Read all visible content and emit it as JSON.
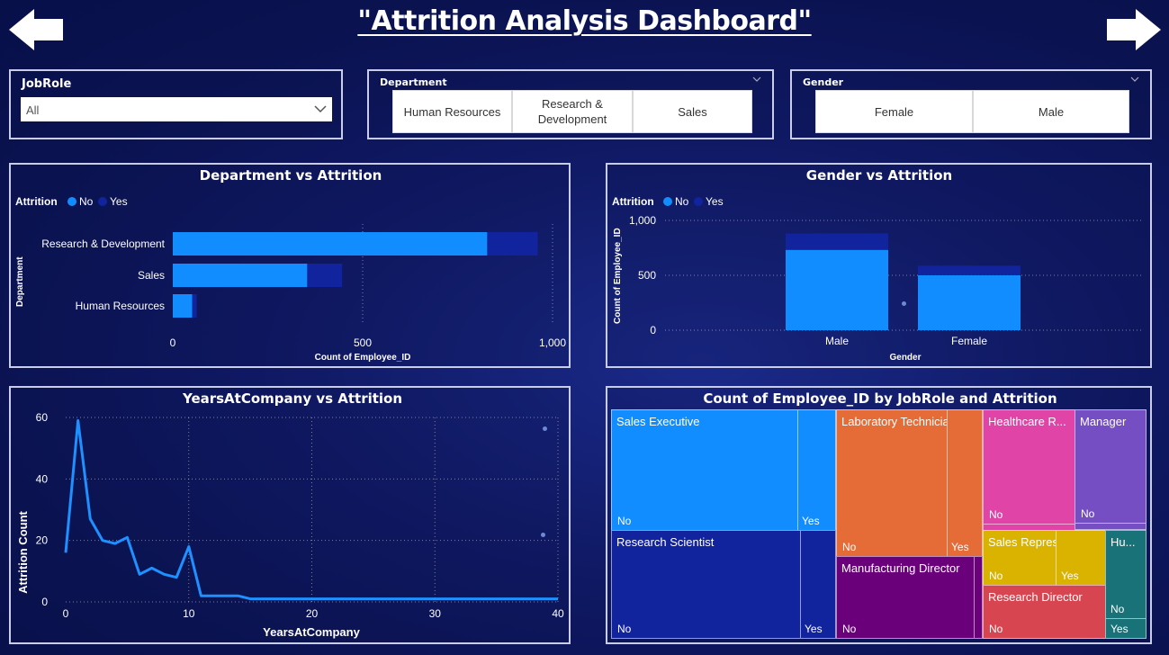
{
  "header": {
    "title": "\"Attrition Analysis Dashboard\"",
    "back_icon": "left-arrow-icon",
    "forward_icon": "right-arrow-icon"
  },
  "slicers": {
    "jobrole": {
      "title": "JobRole",
      "value": "All"
    },
    "department": {
      "title": "Department",
      "options": [
        "Human Resources",
        "Research & Development",
        "Sales"
      ]
    },
    "gender": {
      "title": "Gender",
      "options": [
        "Female",
        "Male"
      ]
    }
  },
  "colors": {
    "no": "#118dff",
    "yes": "#12239e",
    "line": "#1e90ff"
  },
  "dept_chart": {
    "title": "Department vs Attrition",
    "legend_title": "Attrition",
    "legend_no": "No",
    "legend_yes": "Yes",
    "ylabel": "Department",
    "xlabel": "Count of Employee_ID",
    "ticks": [
      "0",
      "500",
      "1,000"
    ]
  },
  "gender_chart": {
    "title": "Gender vs Attrition",
    "legend_title": "Attrition",
    "legend_no": "No",
    "legend_yes": "Yes",
    "ylabel": "Count of Employee_ID",
    "xlabel": "Gender",
    "ticks": [
      "0",
      "500",
      "1,000"
    ]
  },
  "years_chart": {
    "title": "YearsAtCompany vs Attrition",
    "ylabel": "Attrition Count",
    "xlabel": "YearsAtCompany",
    "yticks": [
      "0",
      "20",
      "40",
      "60"
    ],
    "xticks": [
      "0",
      "10",
      "20",
      "30",
      "40"
    ]
  },
  "treemap": {
    "title": "Count of Employee_ID by JobRole and Attrition",
    "sales_executive": "Sales Executive",
    "research_scientist": "Research Scientist",
    "laboratory_technician": "Laboratory Technician",
    "manufacturing_director": "Manufacturing Director",
    "healthcare_rep": "Healthcare R...",
    "manager": "Manager",
    "sales_representative": "Sales Representative",
    "research_director": "Research Director",
    "human_resources": "Hu...",
    "no": "No",
    "yes": "Yes"
  },
  "chart_data": [
    {
      "type": "bar",
      "orientation": "horizontal",
      "stacked": true,
      "title": "Department vs Attrition",
      "xlabel": "Count of Employee_ID",
      "ylabel": "Department",
      "categories": [
        "Research & Development",
        "Sales",
        "Human Resources"
      ],
      "series": [
        {
          "name": "No",
          "values": [
            828,
            354,
            51
          ]
        },
        {
          "name": "Yes",
          "values": [
            133,
            92,
            12
          ]
        }
      ],
      "xlim": [
        0,
        1000
      ],
      "legend": "top-left",
      "grid": true
    },
    {
      "type": "bar",
      "stacked": true,
      "title": "Gender vs Attrition",
      "xlabel": "Gender",
      "ylabel": "Count of Employee_ID",
      "categories": [
        "Male",
        "Female"
      ],
      "series": [
        {
          "name": "No",
          "values": [
            732,
            501
          ]
        },
        {
          "name": "Yes",
          "values": [
            150,
            87
          ]
        }
      ],
      "ylim": [
        0,
        1000
      ],
      "legend": "top-left",
      "grid": true
    },
    {
      "type": "line",
      "title": "YearsAtCompany vs Attrition",
      "xlabel": "YearsAtCompany",
      "ylabel": "Attrition Count",
      "x": [
        0,
        1,
        2,
        3,
        4,
        5,
        6,
        7,
        8,
        9,
        10,
        11,
        12,
        13,
        14,
        15,
        16,
        17,
        18,
        19,
        20,
        21,
        22,
        23,
        24,
        25,
        26,
        27,
        28,
        29,
        30,
        31,
        32,
        33,
        34,
        35,
        36,
        37,
        38,
        39,
        40
      ],
      "y": [
        16,
        59,
        27,
        20,
        19,
        21,
        9,
        11,
        9,
        8,
        18,
        2,
        2,
        2,
        2,
        1,
        1,
        1,
        1,
        1,
        1,
        1,
        1,
        1,
        1,
        1,
        1,
        1,
        1,
        1,
        1,
        1,
        1,
        1,
        1,
        1,
        1,
        1,
        1,
        1,
        1
      ],
      "xlim": [
        0,
        40
      ],
      "ylim": [
        0,
        60
      ],
      "grid": true
    }
  ]
}
